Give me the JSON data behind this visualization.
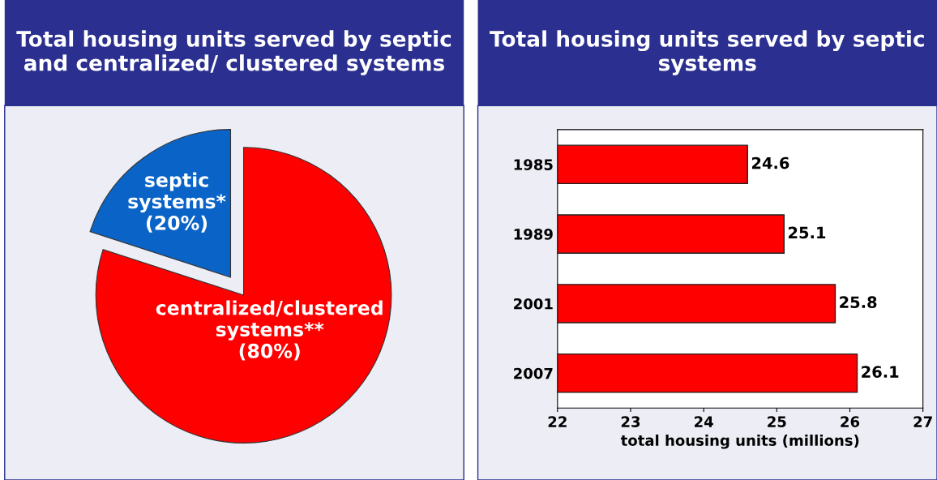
{
  "chart_data": [
    {
      "type": "pie",
      "title": "Total housing units served by septic and centralized/ clustered systems",
      "categories": [
        "septic systems*",
        "centralized/clustered systems**"
      ],
      "values": [
        20,
        80
      ],
      "value_labels": [
        "(20%)",
        "(80%)"
      ],
      "colors": [
        "#0a64c8",
        "#ff0000"
      ]
    },
    {
      "type": "bar",
      "orientation": "horizontal",
      "title": "Total housing units served by septic systems",
      "categories": [
        "1985",
        "1989",
        "2001",
        "2007"
      ],
      "values": [
        24.6,
        25.1,
        25.8,
        26.1
      ],
      "color": "#ff0000",
      "xlim": [
        22,
        27
      ],
      "xticks": [
        22,
        23,
        24,
        25,
        26,
        27
      ],
      "xlabel": "total housing units (millions)",
      "data_labels": true
    }
  ]
}
